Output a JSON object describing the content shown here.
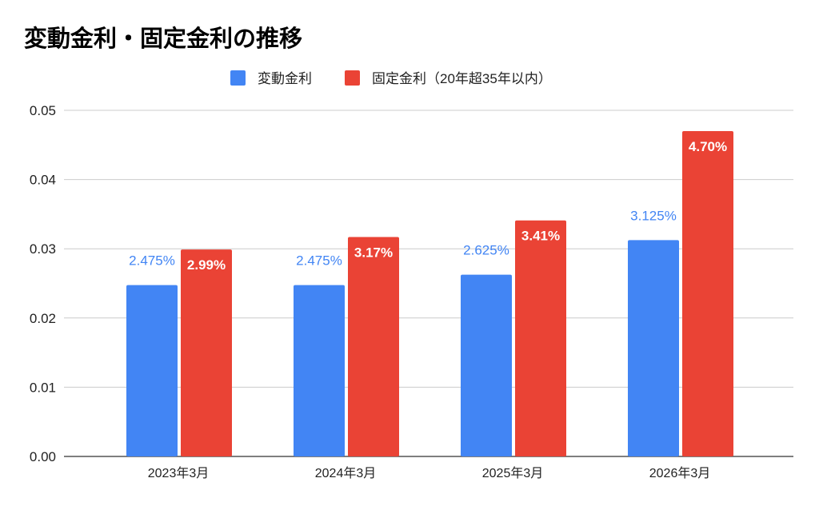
{
  "chart_data": {
    "type": "bar",
    "title": "変動金利・固定金利の推移",
    "xlabel": "",
    "ylabel": "",
    "categories": [
      "2023年3月",
      "2024年3月",
      "2025年3月",
      "2026年3月"
    ],
    "series": [
      {
        "name": "変動金利",
        "color": "#4285F4",
        "values": [
          0.02475,
          0.02475,
          0.02625,
          0.03125
        ],
        "labels": [
          "2.475%",
          "2.475%",
          "2.625%",
          "3.125%"
        ]
      },
      {
        "name": "固定金利（20年超35年以内）",
        "color": "#EA4335",
        "values": [
          0.0299,
          0.0317,
          0.0341,
          0.047
        ],
        "labels": [
          "2.99%",
          "3.17%",
          "3.41%",
          "4.70%"
        ]
      }
    ],
    "ylim": [
      0,
      0.05
    ],
    "yticks": [
      "0.00",
      "0.01",
      "0.02",
      "0.03",
      "0.04",
      "0.05"
    ],
    "grid": true,
    "legend": "top-center"
  }
}
